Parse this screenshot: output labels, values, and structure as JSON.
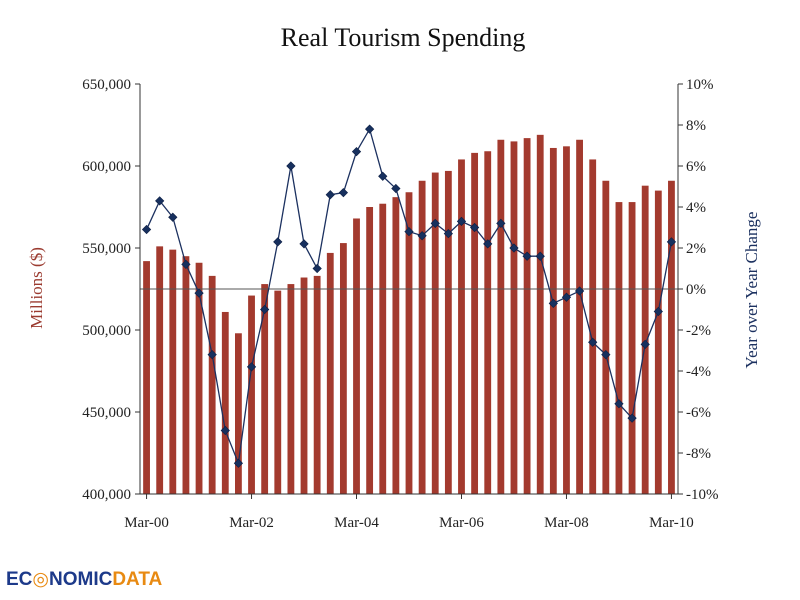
{
  "chart_data": {
    "type": "bar+line",
    "title": "Real Tourism Spending",
    "ylabel_left": "Millions ($)",
    "ylabel_right": "Year over Year Change",
    "y_left_range": [
      400000,
      650000
    ],
    "y_right_range": [
      -10,
      10
    ],
    "y_left_ticks": [
      "400,000",
      "450,000",
      "500,000",
      "550,000",
      "600,000",
      "650,000"
    ],
    "y_right_ticks": [
      "-10%",
      "-8%",
      "-6%",
      "-4%",
      "-2%",
      "0%",
      "2%",
      "4%",
      "6%",
      "8%",
      "10%"
    ],
    "x_tick_labels": [
      "Mar-00",
      "Mar-02",
      "Mar-04",
      "Mar-06",
      "Mar-08",
      "Mar-10"
    ],
    "x_tick_index": [
      0,
      8,
      16,
      24,
      32,
      40
    ],
    "grid": false,
    "colors": {
      "bars": "#a33a2e",
      "line": "#1c3160",
      "marker": "#17305e",
      "zero_line": "#555555"
    },
    "series": [
      {
        "name": "Millions ($)",
        "type": "bar",
        "axis": "left",
        "values": [
          542000,
          551000,
          549000,
          545000,
          541000,
          533000,
          511000,
          498000,
          521000,
          528000,
          524000,
          528000,
          532000,
          533000,
          547000,
          553000,
          568000,
          575000,
          577000,
          581000,
          584000,
          591000,
          596000,
          597000,
          604000,
          608000,
          609000,
          616000,
          615000,
          617000,
          619000,
          611000,
          612000,
          616000,
          604000,
          591000,
          578000,
          578000,
          588000,
          585000,
          591000
        ]
      },
      {
        "name": "Year over Year Change",
        "type": "line",
        "axis": "right",
        "values": [
          2.9,
          4.3,
          3.5,
          1.2,
          -0.2,
          -3.2,
          -6.9,
          -8.5,
          -3.8,
          -1.0,
          2.3,
          6.0,
          2.2,
          1.0,
          4.6,
          4.7,
          6.7,
          7.8,
          5.5,
          4.9,
          2.8,
          2.6,
          3.2,
          2.7,
          3.3,
          3.0,
          2.2,
          3.2,
          2.0,
          1.6,
          1.6,
          -0.7,
          -0.4,
          -0.1,
          -2.6,
          -3.2,
          -5.6,
          -6.3,
          -2.7,
          -1.1,
          2.3
        ]
      }
    ]
  },
  "logo": {
    "part1": "EC",
    "part2": "NOMIC",
    "part3": "DATA"
  }
}
